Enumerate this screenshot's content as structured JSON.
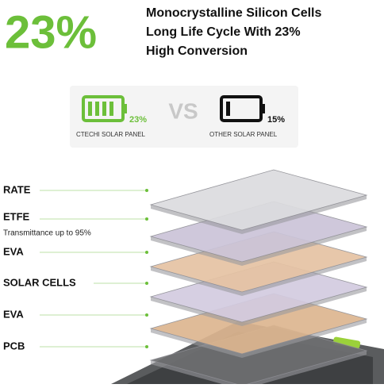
{
  "header": {
    "percent": "23%",
    "lines": [
      "Monocrystalline Silicon Cells",
      "Long Life Cycle With 23%",
      "High Conversion"
    ]
  },
  "comparison": {
    "left": {
      "value": "23%",
      "label": "CTECHI SOLAR PANEL"
    },
    "vs": "VS",
    "right": {
      "value": "15%",
      "label": "OTHER SOLAR PANEL"
    }
  },
  "layers": [
    {
      "label": "RATE"
    },
    {
      "label": "ETFE",
      "note": "Transmittance up to 95%"
    },
    {
      "label": "EVA"
    },
    {
      "label": "SOLAR CELLS"
    },
    {
      "label": "EVA"
    },
    {
      "label": "PCB"
    }
  ]
}
